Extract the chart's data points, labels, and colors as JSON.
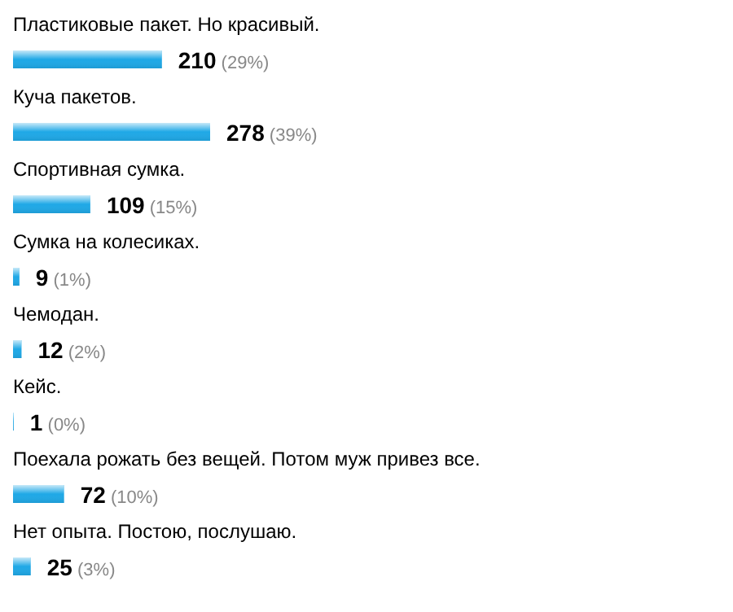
{
  "chart_data": {
    "type": "bar",
    "orientation": "horizontal",
    "color": "#1fa8e6",
    "categories": [
      "Пластиковые пакет. Но красивый.",
      "Куча пакетов.",
      "Спортивная сумка.",
      "Сумка на колесиках.",
      "Чемодан.",
      "Кейс.",
      "Поехала рожать без вещей. Потом муж привез все.",
      "Нет опыта. Постою, послушаю."
    ],
    "values": [
      210,
      278,
      109,
      9,
      12,
      1,
      72,
      25
    ],
    "value_labels": [
      "210 (29%)",
      "278 (39%)",
      "109 (15%)",
      "9 (1%)",
      "12 (2%)",
      "1 (0%)",
      "72 (10%)",
      "25 (3%)"
    ]
  }
}
